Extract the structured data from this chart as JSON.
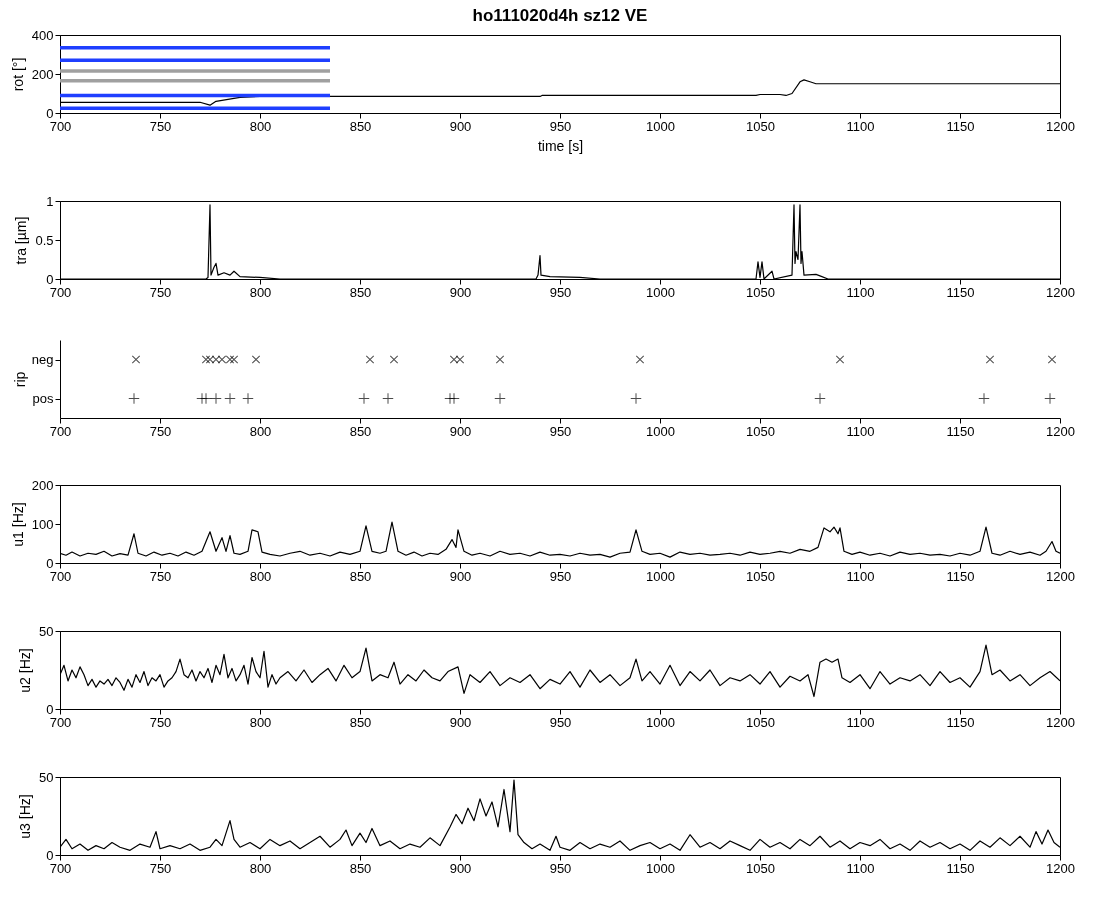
{
  "chart_data": [
    {
      "type": "line",
      "title": "ho111020d4h sz12 VE",
      "xlabel": "time   [s]",
      "ylabel": "rot [°]",
      "xlim": [
        700,
        1200
      ],
      "xticks": [
        700,
        750,
        800,
        850,
        900,
        950,
        1000,
        1050,
        1100,
        1150,
        1200
      ],
      "ylim": [
        0,
        400
      ],
      "yticks": [
        0,
        200,
        400
      ],
      "grid": false,
      "series": [
        {
          "color": "#000000",
          "x": [
            700,
            770,
            775,
            778,
            790,
            800,
            940,
            941,
            1048,
            1050,
            1060,
            1063,
            1066,
            1070,
            1072,
            1075,
            1078,
            1080,
            1200
          ],
          "values": [
            55,
            55,
            40,
            60,
            80,
            85,
            85,
            90,
            90,
            95,
            95,
            90,
            100,
            160,
            170,
            160,
            150,
            150,
            150
          ]
        },
        {
          "color": "#1f3fff",
          "x": [
            700,
            835
          ],
          "values": [
            335,
            335
          ]
        },
        {
          "color": "#1f3fff",
          "x": [
            700,
            835
          ],
          "values": [
            270,
            270
          ]
        },
        {
          "color": "#a0a0a0",
          "x": [
            700,
            835
          ],
          "values": [
            215,
            215
          ]
        },
        {
          "color": "#a0a0a0",
          "x": [
            700,
            835
          ],
          "values": [
            165,
            165
          ]
        },
        {
          "color": "#1f3fff",
          "x": [
            700,
            835
          ],
          "values": [
            90,
            90
          ]
        },
        {
          "color": "#1f3fff",
          "x": [
            700,
            835
          ],
          "values": [
            25,
            25
          ]
        }
      ]
    },
    {
      "type": "line",
      "ylabel": "tra [µm]",
      "xlim": [
        700,
        1200
      ],
      "xticks": [
        700,
        750,
        800,
        850,
        900,
        950,
        1000,
        1050,
        1100,
        1150,
        1200
      ],
      "ylim": [
        0,
        1
      ],
      "yticks": [
        0,
        0.5,
        1
      ],
      "grid": false,
      "series": [
        {
          "color": "#000000",
          "x": [
            700,
            773,
            774,
            775,
            775.5,
            777,
            778,
            779,
            782,
            785,
            787,
            790,
            800,
            810,
            938,
            939,
            940,
            940.5,
            945,
            960,
            970,
            1048,
            1049,
            1050,
            1051,
            1052,
            1056,
            1057,
            1066,
            1067,
            1067.5,
            1068,
            1069,
            1070,
            1070.5,
            1071,
            1072,
            1078,
            1080,
            1084,
            1200
          ],
          "values": [
            0,
            0,
            0.02,
            0.95,
            0.05,
            0.15,
            0.2,
            0.05,
            0.08,
            0.05,
            0.1,
            0.03,
            0.02,
            0,
            0,
            0.05,
            0.3,
            0.05,
            0.03,
            0.02,
            0,
            0,
            0.22,
            0.02,
            0.22,
            0,
            0.1,
            0,
            0.05,
            0.95,
            0.2,
            0.35,
            0.25,
            0.95,
            0.2,
            0.35,
            0.05,
            0.06,
            0.04,
            0,
            0
          ]
        }
      ]
    },
    {
      "type": "scatter",
      "ylabel": "rip",
      "xlim": [
        700,
        1200
      ],
      "xticks": [
        700,
        750,
        800,
        850,
        900,
        950,
        1000,
        1050,
        1100,
        1150,
        1200
      ],
      "orientation": "horizontal",
      "categories": [
        "neg",
        "pos"
      ],
      "grid": false,
      "marker": "cross",
      "series": [
        {
          "color": "#000000",
          "values": [
            738,
            737
          ]
        },
        {
          "color": "#000000",
          "values": [
            773,
            771
          ]
        },
        {
          "color": "#000000",
          "values": [
            775,
            773
          ]
        },
        {
          "color": "#000000",
          "values": [
            778,
            778
          ]
        },
        {
          "color": "#000000",
          "values": [
            781,
            785
          ]
        },
        {
          "color": "#000000",
          "values": [
            785,
            794
          ]
        },
        {
          "color": "#000000",
          "values": [
            787,
            852
          ]
        },
        {
          "color": "#000000",
          "values": [
            798,
            864
          ]
        },
        {
          "color": "#000000",
          "values": [
            855,
            895
          ]
        },
        {
          "color": "#000000",
          "values": [
            867,
            897
          ]
        },
        {
          "color": "#000000",
          "values": [
            897,
            920
          ]
        },
        {
          "color": "#000000",
          "values": [
            900,
            988
          ]
        },
        {
          "color": "#000000",
          "values": [
            920,
            1080
          ]
        },
        {
          "color": "#000000",
          "values": [
            990,
            1162
          ]
        },
        {
          "color": "#000000",
          "values": [
            1090,
            1195
          ]
        },
        {
          "color": "#000000",
          "values": [
            1165,
            null
          ]
        },
        {
          "color": "#000000",
          "values": [
            1196,
            null
          ]
        }
      ]
    },
    {
      "type": "line",
      "ylabel": "u1 [Hz]",
      "xlim": [
        700,
        1200
      ],
      "xticks": [
        700,
        750,
        800,
        850,
        900,
        950,
        1000,
        1050,
        1100,
        1150,
        1200
      ],
      "ylim": [
        0,
        200
      ],
      "yticks": [
        0,
        100,
        200
      ],
      "grid": false,
      "series": [
        {
          "color": "#000000",
          "x": [
            700,
            703,
            706,
            710,
            714,
            718,
            722,
            726,
            730,
            734,
            737,
            739,
            743,
            747,
            751,
            755,
            759,
            763,
            767,
            771,
            775,
            778,
            781,
            783,
            785,
            787,
            790,
            794,
            796,
            799,
            801,
            805,
            810,
            815,
            820,
            825,
            830,
            835,
            840,
            845,
            850,
            853,
            856,
            860,
            863,
            866,
            869,
            873,
            877,
            881,
            885,
            889,
            893,
            896,
            898,
            899,
            902,
            906,
            910,
            915,
            920,
            925,
            930,
            935,
            940,
            945,
            950,
            955,
            960,
            965,
            970,
            975,
            980,
            985,
            988,
            991,
            995,
            1000,
            1005,
            1010,
            1015,
            1020,
            1025,
            1030,
            1035,
            1040,
            1045,
            1050,
            1055,
            1060,
            1065,
            1070,
            1075,
            1079,
            1082,
            1085,
            1087,
            1089,
            1090,
            1092,
            1096,
            1100,
            1105,
            1110,
            1115,
            1120,
            1125,
            1130,
            1135,
            1140,
            1145,
            1150,
            1155,
            1160,
            1163,
            1166,
            1170,
            1175,
            1180,
            1185,
            1190,
            1193,
            1196,
            1198,
            1200
          ],
          "values": [
            25,
            20,
            28,
            18,
            25,
            22,
            30,
            18,
            24,
            20,
            75,
            25,
            18,
            28,
            20,
            25,
            18,
            28,
            20,
            30,
            80,
            30,
            65,
            30,
            70,
            25,
            22,
            30,
            85,
            80,
            28,
            22,
            18,
            25,
            30,
            20,
            25,
            18,
            28,
            22,
            30,
            95,
            30,
            25,
            30,
            105,
            30,
            20,
            28,
            18,
            25,
            22,
            35,
            60,
            40,
            85,
            30,
            20,
            25,
            18,
            30,
            22,
            25,
            18,
            28,
            20,
            22,
            18,
            25,
            20,
            22,
            15,
            25,
            28,
            85,
            30,
            22,
            25,
            15,
            28,
            22,
            25,
            20,
            22,
            25,
            20,
            28,
            22,
            25,
            30,
            25,
            35,
            30,
            40,
            90,
            80,
            92,
            75,
            90,
            30,
            22,
            28,
            20,
            25,
            18,
            28,
            22,
            25,
            20,
            22,
            18,
            25,
            20,
            30,
            92,
            25,
            20,
            30,
            22,
            28,
            20,
            30,
            55,
            30,
            25
          ]
        }
      ]
    },
    {
      "type": "line",
      "ylabel": "u2 [Hz]",
      "xlim": [
        700,
        1200
      ],
      "xticks": [
        700,
        750,
        800,
        850,
        900,
        950,
        1000,
        1050,
        1100,
        1150,
        1200
      ],
      "ylim": [
        0,
        50
      ],
      "yticks": [
        0,
        50
      ],
      "grid": false,
      "series": [
        {
          "color": "#000000",
          "x": [
            700,
            702,
            704,
            706,
            708,
            710,
            712,
            714,
            716,
            718,
            720,
            722,
            724,
            726,
            728,
            730,
            732,
            734,
            736,
            738,
            740,
            742,
            744,
            746,
            748,
            750,
            752,
            754,
            756,
            758,
            760,
            762,
            764,
            766,
            768,
            770,
            772,
            774,
            776,
            778,
            780,
            782,
            784,
            786,
            788,
            790,
            792,
            794,
            796,
            798,
            800,
            802,
            804,
            806,
            808,
            810,
            814,
            818,
            822,
            826,
            830,
            834,
            838,
            842,
            846,
            850,
            853,
            856,
            860,
            864,
            867,
            870,
            874,
            878,
            882,
            886,
            890,
            894,
            899,
            902,
            905,
            910,
            915,
            920,
            925,
            930,
            935,
            940,
            945,
            950,
            955,
            960,
            965,
            970,
            975,
            980,
            985,
            988,
            991,
            995,
            1000,
            1005,
            1010,
            1015,
            1020,
            1025,
            1030,
            1035,
            1040,
            1045,
            1050,
            1055,
            1060,
            1065,
            1070,
            1074,
            1077,
            1080,
            1083,
            1086,
            1089,
            1091,
            1095,
            1100,
            1105,
            1110,
            1115,
            1120,
            1125,
            1130,
            1135,
            1140,
            1145,
            1150,
            1155,
            1160,
            1163,
            1166,
            1170,
            1175,
            1180,
            1185,
            1190,
            1195,
            1200
          ],
          "values": [
            22,
            28,
            18,
            25,
            20,
            27,
            22,
            15,
            19,
            14,
            18,
            16,
            19,
            15,
            20,
            17,
            12,
            19,
            14,
            22,
            17,
            24,
            15,
            20,
            18,
            22,
            14,
            18,
            20,
            24,
            32,
            22,
            20,
            25,
            18,
            24,
            20,
            26,
            17,
            28,
            22,
            35,
            20,
            26,
            18,
            22,
            28,
            16,
            33,
            24,
            20,
            37,
            14,
            22,
            16,
            20,
            24,
            18,
            25,
            17,
            22,
            26,
            18,
            28,
            20,
            24,
            39,
            18,
            22,
            20,
            30,
            16,
            22,
            18,
            25,
            20,
            18,
            24,
            27,
            10,
            22,
            17,
            24,
            15,
            20,
            17,
            22,
            13,
            19,
            16,
            24,
            14,
            25,
            17,
            22,
            15,
            20,
            32,
            18,
            24,
            16,
            28,
            15,
            24,
            18,
            25,
            15,
            20,
            18,
            22,
            16,
            24,
            14,
            21,
            18,
            22,
            8,
            30,
            32,
            30,
            32,
            20,
            17,
            22,
            13,
            24,
            16,
            20,
            18,
            22,
            15,
            24,
            17,
            20,
            14,
            24,
            41,
            22,
            25,
            18,
            22,
            15,
            20,
            24,
            18
          ]
        }
      ]
    },
    {
      "type": "line",
      "ylabel": "u3 [Hz]",
      "xlim": [
        700,
        1200
      ],
      "xticks": [
        700,
        750,
        800,
        850,
        900,
        950,
        1000,
        1050,
        1100,
        1150,
        1200
      ],
      "ylim": [
        0,
        50
      ],
      "yticks": [
        0,
        50
      ],
      "grid": false,
      "series": [
        {
          "color": "#000000",
          "x": [
            700,
            703,
            706,
            710,
            714,
            718,
            722,
            726,
            730,
            735,
            740,
            745,
            748,
            750,
            755,
            760,
            765,
            770,
            775,
            778,
            781,
            783,
            785,
            787,
            790,
            795,
            800,
            805,
            810,
            815,
            820,
            825,
            830,
            835,
            840,
            843,
            846,
            850,
            853,
            856,
            860,
            865,
            870,
            875,
            880,
            885,
            890,
            895,
            898,
            901,
            904,
            907,
            910,
            913,
            916,
            919,
            922,
            925,
            927,
            929,
            932,
            936,
            940,
            945,
            948,
            950,
            955,
            960,
            965,
            970,
            975,
            980,
            985,
            990,
            995,
            1000,
            1005,
            1010,
            1015,
            1020,
            1025,
            1030,
            1035,
            1040,
            1045,
            1050,
            1055,
            1060,
            1065,
            1070,
            1075,
            1080,
            1085,
            1090,
            1095,
            1100,
            1105,
            1110,
            1115,
            1120,
            1125,
            1130,
            1135,
            1140,
            1145,
            1150,
            1155,
            1160,
            1165,
            1170,
            1175,
            1180,
            1185,
            1188,
            1191,
            1194,
            1197,
            1200
          ],
          "values": [
            5,
            10,
            4,
            7,
            3,
            6,
            4,
            8,
            5,
            3,
            7,
            5,
            15,
            4,
            6,
            4,
            7,
            3,
            5,
            10,
            6,
            14,
            22,
            10,
            5,
            8,
            4,
            10,
            6,
            9,
            4,
            8,
            12,
            5,
            10,
            16,
            6,
            14,
            8,
            17,
            6,
            9,
            4,
            7,
            5,
            11,
            6,
            18,
            26,
            20,
            30,
            22,
            36,
            25,
            34,
            18,
            42,
            15,
            48,
            13,
            8,
            4,
            7,
            3,
            12,
            5,
            3,
            8,
            4,
            7,
            5,
            9,
            3,
            6,
            8,
            4,
            7,
            3,
            13,
            5,
            8,
            4,
            9,
            6,
            3,
            10,
            5,
            8,
            4,
            10,
            6,
            12,
            5,
            9,
            4,
            8,
            6,
            10,
            4,
            7,
            3,
            9,
            5,
            8,
            4,
            7,
            3,
            9,
            5,
            11,
            6,
            12,
            5,
            15,
            7,
            16,
            8,
            5
          ]
        }
      ]
    }
  ]
}
